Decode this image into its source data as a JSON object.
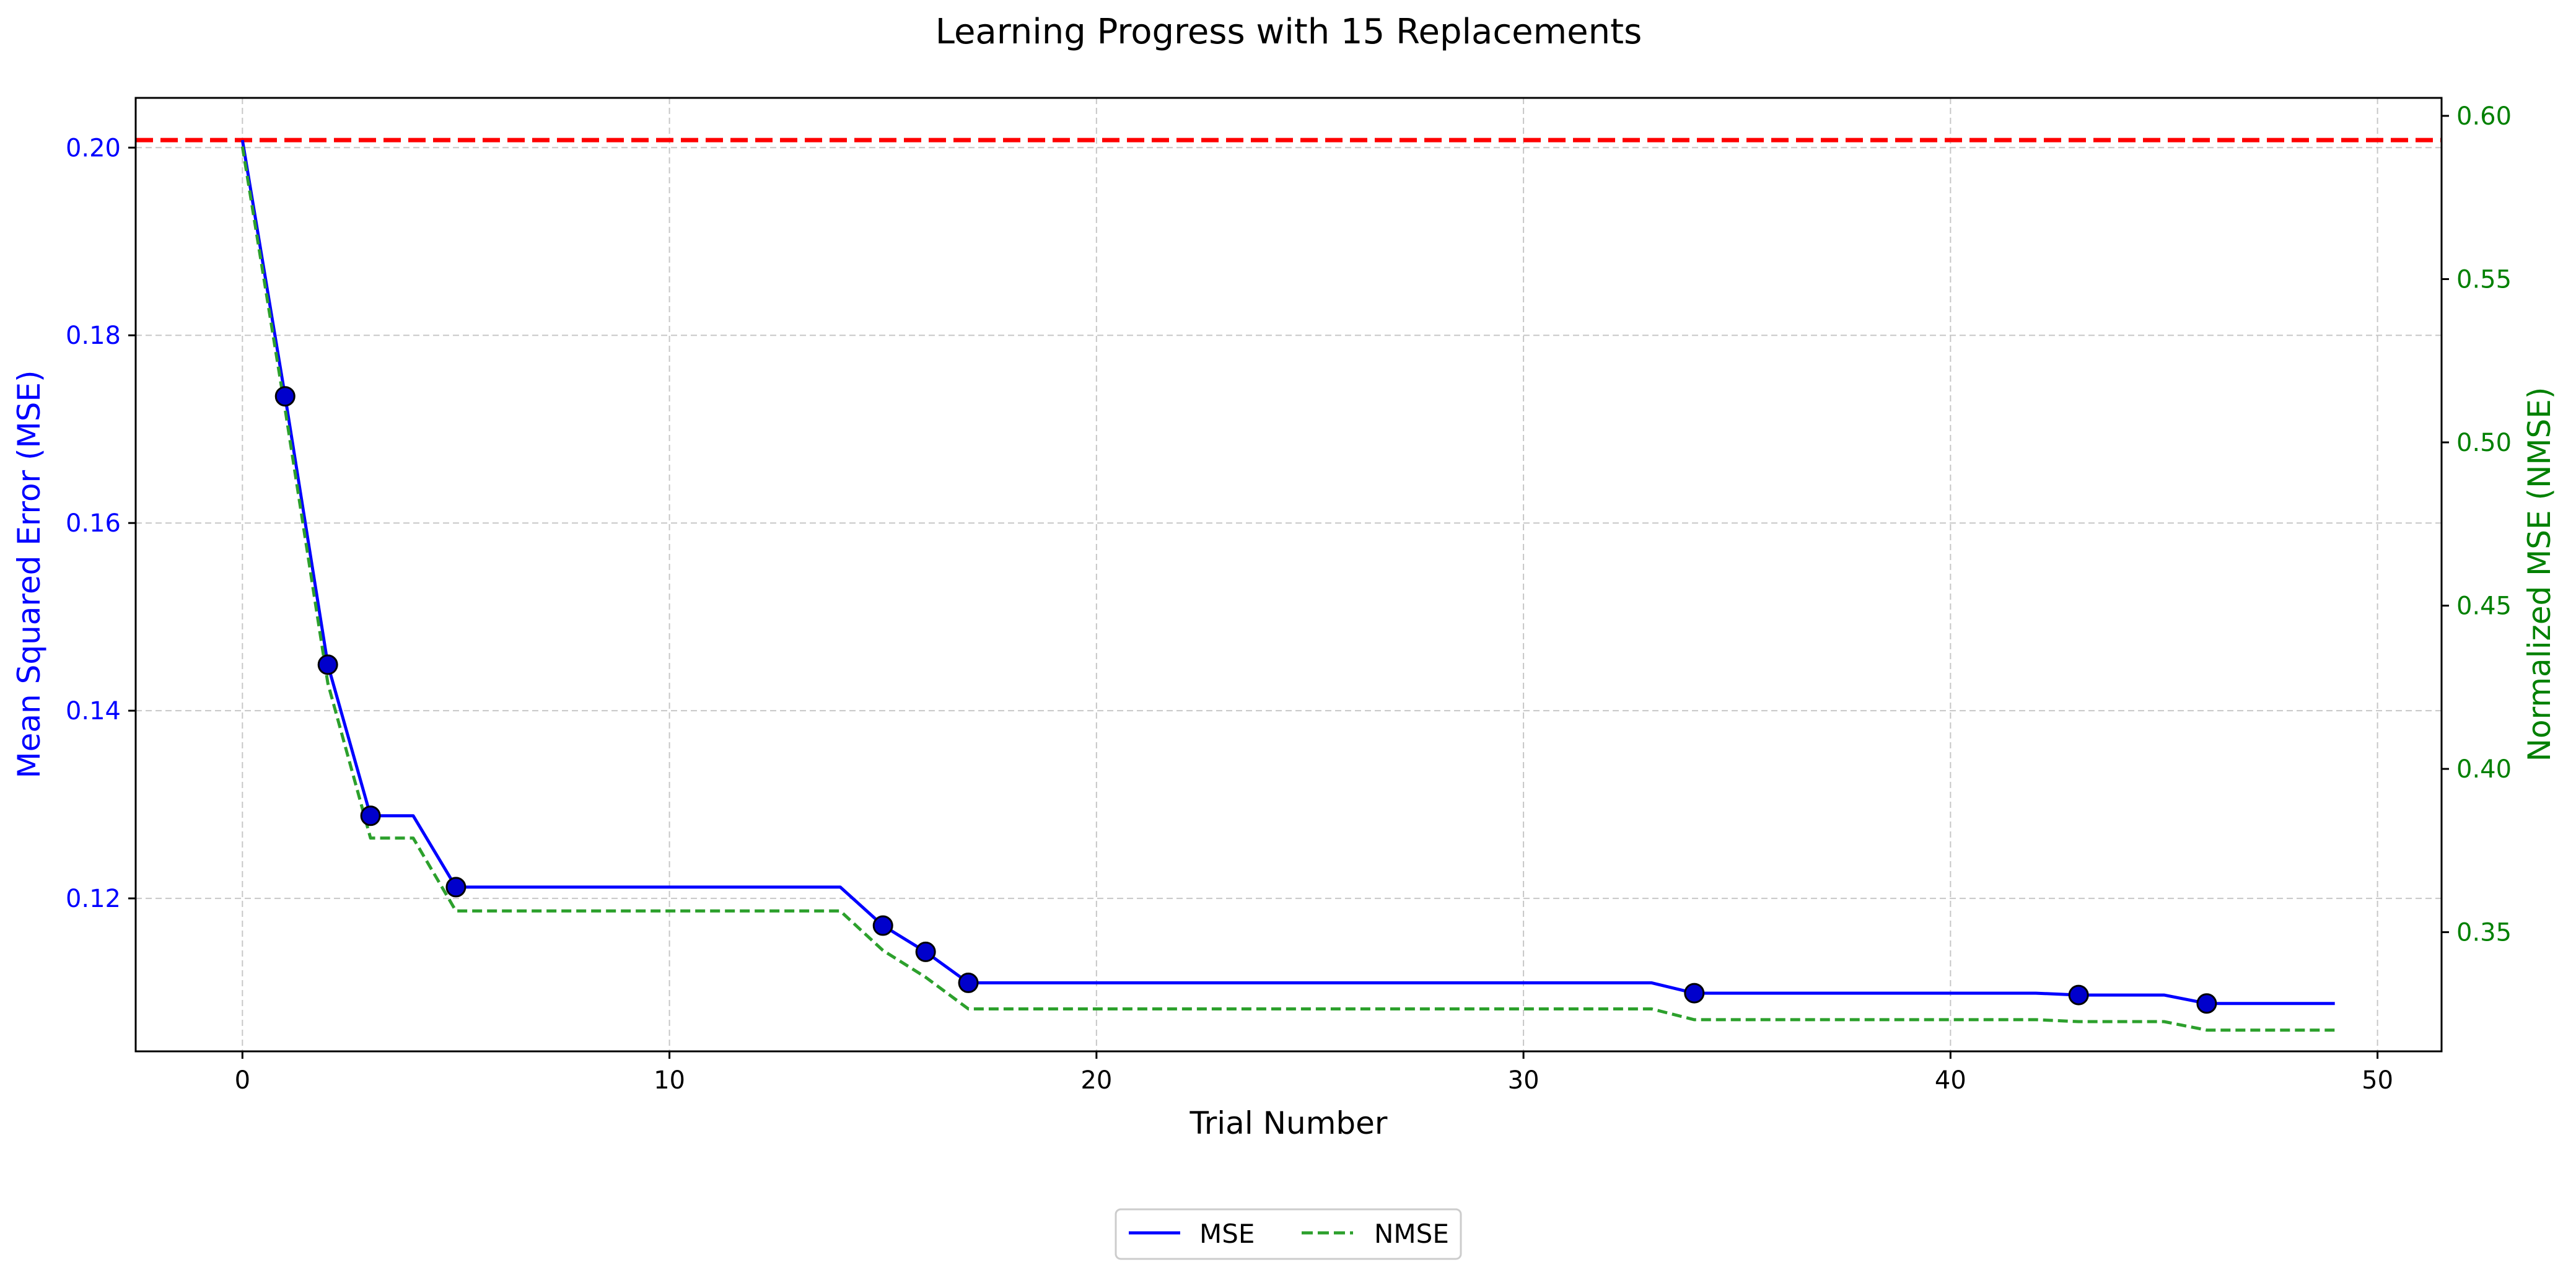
{
  "chart_data": {
    "type": "line",
    "title": "Learning Progress with 15 Replacements",
    "xlabel": "Trial Number",
    "ylabel": "Mean Squared Error (MSE)",
    "ylabel_right": "Normalized MSE (NMSE)",
    "xlim": [
      -2.5,
      51.5
    ],
    "ylim": [
      0.1037,
      0.2053
    ],
    "ylim_right": [
      0.3135,
      0.6055
    ],
    "x_ticks": [
      0,
      10,
      20,
      30,
      40,
      50
    ],
    "y_ticks": [
      0.12,
      0.14,
      0.16,
      0.18,
      0.2
    ],
    "y_tick_labels": [
      "0.12",
      "0.14",
      "0.16",
      "0.18",
      "0.20"
    ],
    "y_right_ticks": [
      0.35,
      0.4,
      0.45,
      0.5,
      0.55,
      0.6
    ],
    "y_right_tick_labels": [
      "0.35",
      "0.40",
      "0.45",
      "0.50",
      "0.55",
      "0.60"
    ],
    "grid": true,
    "legend_position": "bottom-center",
    "baseline": {
      "y": 0.2008,
      "color": "#ff0000",
      "style": "dashed"
    },
    "x": [
      0,
      1,
      2,
      3,
      4,
      5,
      6,
      7,
      8,
      9,
      10,
      11,
      12,
      13,
      14,
      15,
      16,
      17,
      18,
      19,
      20,
      21,
      22,
      23,
      24,
      25,
      26,
      27,
      28,
      29,
      30,
      31,
      32,
      33,
      34,
      35,
      36,
      37,
      38,
      39,
      40,
      41,
      42,
      43,
      44,
      45,
      46,
      47,
      48,
      49
    ],
    "series": [
      {
        "name": "MSE",
        "axis": "left",
        "color": "#0000ff",
        "style": "solid",
        "values": [
          0.2008,
          0.1735,
          0.1449,
          0.1288,
          0.1288,
          0.1212,
          0.1212,
          0.1212,
          0.1212,
          0.1212,
          0.1212,
          0.1212,
          0.1212,
          0.1212,
          0.1212,
          0.1171,
          0.1143,
          0.111,
          0.111,
          0.111,
          0.111,
          0.111,
          0.111,
          0.111,
          0.111,
          0.111,
          0.111,
          0.111,
          0.111,
          0.111,
          0.111,
          0.111,
          0.111,
          0.111,
          0.1099,
          0.1099,
          0.1099,
          0.1099,
          0.1099,
          0.1099,
          0.1099,
          0.1099,
          0.1099,
          0.1097,
          0.1097,
          0.1097,
          0.1088,
          0.1088,
          0.1088,
          0.1088
        ]
      },
      {
        "name": "NMSE",
        "axis": "right",
        "color": "#2ca02c",
        "style": "dashed",
        "values": [
          0.5906,
          0.5102,
          0.4262,
          0.3788,
          0.3788,
          0.3565,
          0.3565,
          0.3565,
          0.3565,
          0.3565,
          0.3565,
          0.3565,
          0.3565,
          0.3565,
          0.3565,
          0.3444,
          0.3362,
          0.3265,
          0.3265,
          0.3265,
          0.3265,
          0.3265,
          0.3265,
          0.3265,
          0.3265,
          0.3265,
          0.3265,
          0.3265,
          0.3265,
          0.3265,
          0.3265,
          0.3265,
          0.3265,
          0.3265,
          0.3232,
          0.3232,
          0.3232,
          0.3232,
          0.3232,
          0.3232,
          0.3232,
          0.3232,
          0.3232,
          0.3226,
          0.3226,
          0.3226,
          0.32,
          0.32,
          0.32,
          0.32
        ]
      }
    ],
    "replacement_markers": {
      "x": [
        1,
        2,
        3,
        5,
        15,
        16,
        17,
        34,
        43,
        46
      ],
      "color": "#0000cc"
    },
    "colors": {
      "left_axis": "#0000ff",
      "right_axis": "#008000",
      "grid": "#b0b0b0",
      "text": "#000000"
    }
  }
}
